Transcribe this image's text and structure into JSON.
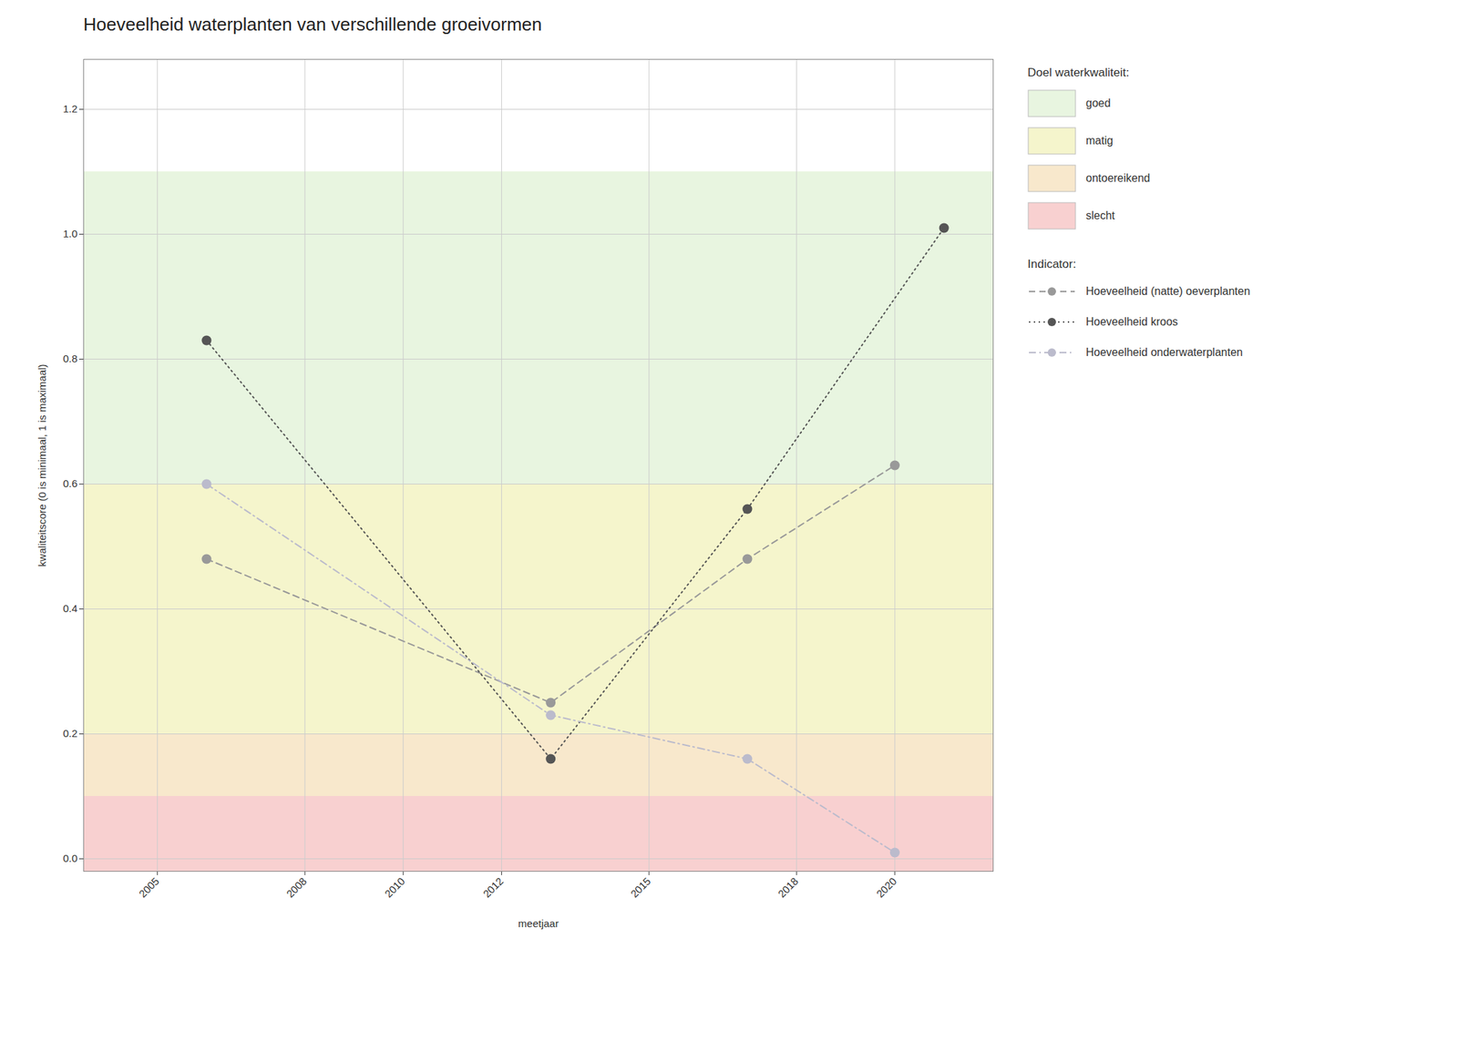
{
  "chart_data": {
    "type": "line",
    "title": "Hoeveelheid waterplanten van verschillende groeivormen",
    "xlabel": "meetjaar",
    "ylabel": "kwaliteitscore (0 is minimaal, 1 is maximaal)",
    "xlim": [
      2003.5,
      2022
    ],
    "ylim": [
      -0.02,
      1.28
    ],
    "xticks": [
      2005,
      2008,
      2010,
      2012,
      2015,
      2018,
      2020
    ],
    "yticks": [
      {
        "value": 0.0,
        "label": "0.0"
      },
      0.2,
      0.4,
      0.6,
      0.8,
      {
        "value": 1.0,
        "label": "1.0"
      },
      1.2
    ],
    "grid": true,
    "legend": "right",
    "zone_legend_title": "Doel waterkwaliteit:",
    "series_legend_title": "Indicator:",
    "zones": [
      {
        "name": "goed",
        "ymin": 0.6,
        "ymax": 1.1,
        "color": "#e8f5e0"
      },
      {
        "name": "matig",
        "ymin": 0.2,
        "ymax": 0.6,
        "color": "#f5f5cc"
      },
      {
        "name": "ontoereikend",
        "ymin": 0.1,
        "ymax": 0.2,
        "color": "#f8e8cc"
      },
      {
        "name": "slecht",
        "ymin": -0.02,
        "ymax": 0.1,
        "color": "#f8d0d0"
      }
    ],
    "series": [
      {
        "name": "Hoeveelheid (natte) oeverplanten",
        "color": "#999999",
        "line_style": "dashed",
        "marker": "circle",
        "x": [
          2006,
          2013,
          2017,
          2020
        ],
        "values": [
          0.48,
          0.25,
          0.48,
          0.63
        ]
      },
      {
        "name": "Hoeveelheid kroos",
        "color": "#555555",
        "line_style": "dotted",
        "marker": "circle",
        "x": [
          2006,
          2013,
          2017,
          2021
        ],
        "values": [
          0.83,
          0.16,
          0.56,
          1.01
        ]
      },
      {
        "name": "Hoeveelheid onderwaterplanten",
        "color": "#bbbbcc",
        "line_style": "dashdot",
        "marker": "circle",
        "x": [
          2006,
          2013,
          2017,
          2020
        ],
        "values": [
          0.6,
          0.23,
          0.16,
          0.01
        ]
      }
    ]
  }
}
